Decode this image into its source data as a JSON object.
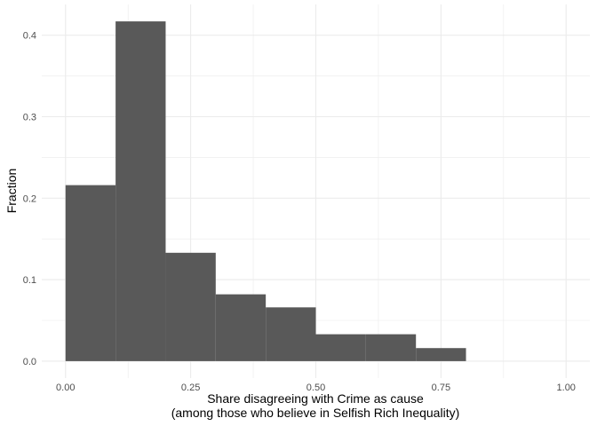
{
  "chart_data": {
    "type": "bar",
    "subtype": "histogram",
    "bins": [
      {
        "start": 0.0,
        "end": 0.1,
        "value": 0.216
      },
      {
        "start": 0.1,
        "end": 0.2,
        "value": 0.417
      },
      {
        "start": 0.2,
        "end": 0.3,
        "value": 0.133
      },
      {
        "start": 0.3,
        "end": 0.4,
        "value": 0.082
      },
      {
        "start": 0.4,
        "end": 0.5,
        "value": 0.066
      },
      {
        "start": 0.5,
        "end": 0.6,
        "value": 0.033
      },
      {
        "start": 0.6,
        "end": 0.7,
        "value": 0.033
      },
      {
        "start": 0.7,
        "end": 0.8,
        "value": 0.016
      }
    ],
    "title": "",
    "xlabel": "Share disagreeing with Crime as cause",
    "xlabel2": "(among those who believe in Selfish Rich Inequality)",
    "ylabel": "Fraction",
    "xlim": [
      -0.0475,
      1.0475
    ],
    "ylim": [
      -0.0208,
      0.4378
    ],
    "xticks": [
      0.0,
      0.25,
      0.5,
      0.75,
      1.0
    ],
    "xtick_labels": [
      "0.00",
      "0.25",
      "0.50",
      "0.75",
      "1.00"
    ],
    "yticks": [
      0.0,
      0.1,
      0.2,
      0.3,
      0.4
    ],
    "ytick_labels": [
      "0.0",
      "0.1",
      "0.2",
      "0.3",
      "0.4"
    ],
    "grid": true,
    "bar_color": "#595959",
    "grid_color": "#ebebeb"
  }
}
